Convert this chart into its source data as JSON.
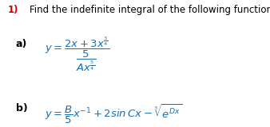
{
  "background": "#ffffff",
  "red": "#cc0000",
  "black": "#000000",
  "blue": "#1a6faf",
  "title_num": "1)",
  "title_text": "Find the indefinite integral of the following functions:",
  "title_fontsize": 8.5,
  "label_a": "a)",
  "label_b": "b)",
  "expr_a": "$y = \\dfrac{2x+3x^{\\frac{3}{4}}}{\\dfrac{5}{Ax^{\\frac{5}{4}}}}$",
  "expr_b": "$y = \\dfrac{B}{5}x^{-1} + 2\\sin Cx - \\sqrt[3]{e^{Dx}}$",
  "label_fontsize": 9,
  "expr_fontsize": 9.5,
  "figsize": [
    3.38,
    1.6
  ],
  "dpi": 100
}
